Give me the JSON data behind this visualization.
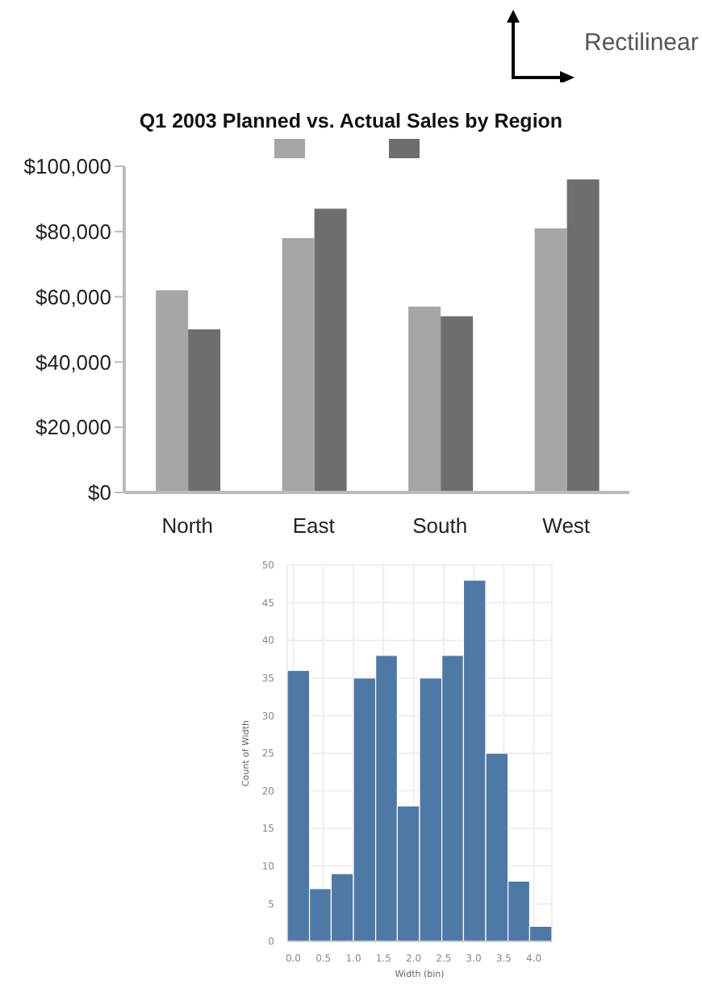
{
  "chart_data": [
    {
      "type": "bar",
      "title": "Q1 2003 Planned vs. Actual Sales by Region",
      "categories": [
        "North",
        "East",
        "South",
        "West"
      ],
      "series": [
        {
          "color": "#a6a6a6",
          "values": [
            62000,
            78000,
            57000,
            81000
          ]
        },
        {
          "color": "#6e6e6e",
          "values": [
            50000,
            87000,
            54000,
            96000
          ]
        }
      ],
      "ylim": [
        0,
        100000
      ],
      "yticks": [
        {
          "value": 0,
          "label": "$0"
        },
        {
          "value": 20000,
          "label": "$20,000"
        },
        {
          "value": 40000,
          "label": "$40,000"
        },
        {
          "value": 60000,
          "label": "$60,000"
        },
        {
          "value": 80000,
          "label": "$80,000"
        },
        {
          "value": 100000,
          "label": "$100,000"
        }
      ],
      "grid": false,
      "annotations": [
        "Rectilinear"
      ]
    },
    {
      "type": "histogram",
      "xlabel": "Width (bin)",
      "ylabel": "Count of Width",
      "color": "#4e79a7",
      "bins": [
        -0.1,
        0.27,
        0.63,
        1.0,
        1.37,
        1.73,
        2.1,
        2.47,
        2.83,
        3.2,
        3.57,
        3.93,
        4.3
      ],
      "values": [
        36,
        7,
        9,
        35,
        38,
        18,
        35,
        38,
        48,
        25,
        8,
        2
      ],
      "xlim": [
        -0.1,
        4.3
      ],
      "xticks": [
        {
          "value": 0,
          "label": "0.0"
        },
        {
          "value": 0.5,
          "label": "0.5"
        },
        {
          "value": 1,
          "label": "1.0"
        },
        {
          "value": 1.5,
          "label": "1.5"
        },
        {
          "value": 2,
          "label": "2.0"
        },
        {
          "value": 2.5,
          "label": "2.5"
        },
        {
          "value": 3,
          "label": "3.0"
        },
        {
          "value": 3.5,
          "label": "3.5"
        },
        {
          "value": 4,
          "label": "4.0"
        }
      ],
      "ylim": [
        0,
        50
      ],
      "yticks": [
        0,
        5,
        10,
        15,
        20,
        25,
        30,
        35,
        40,
        45,
        50
      ],
      "grid": true
    }
  ]
}
